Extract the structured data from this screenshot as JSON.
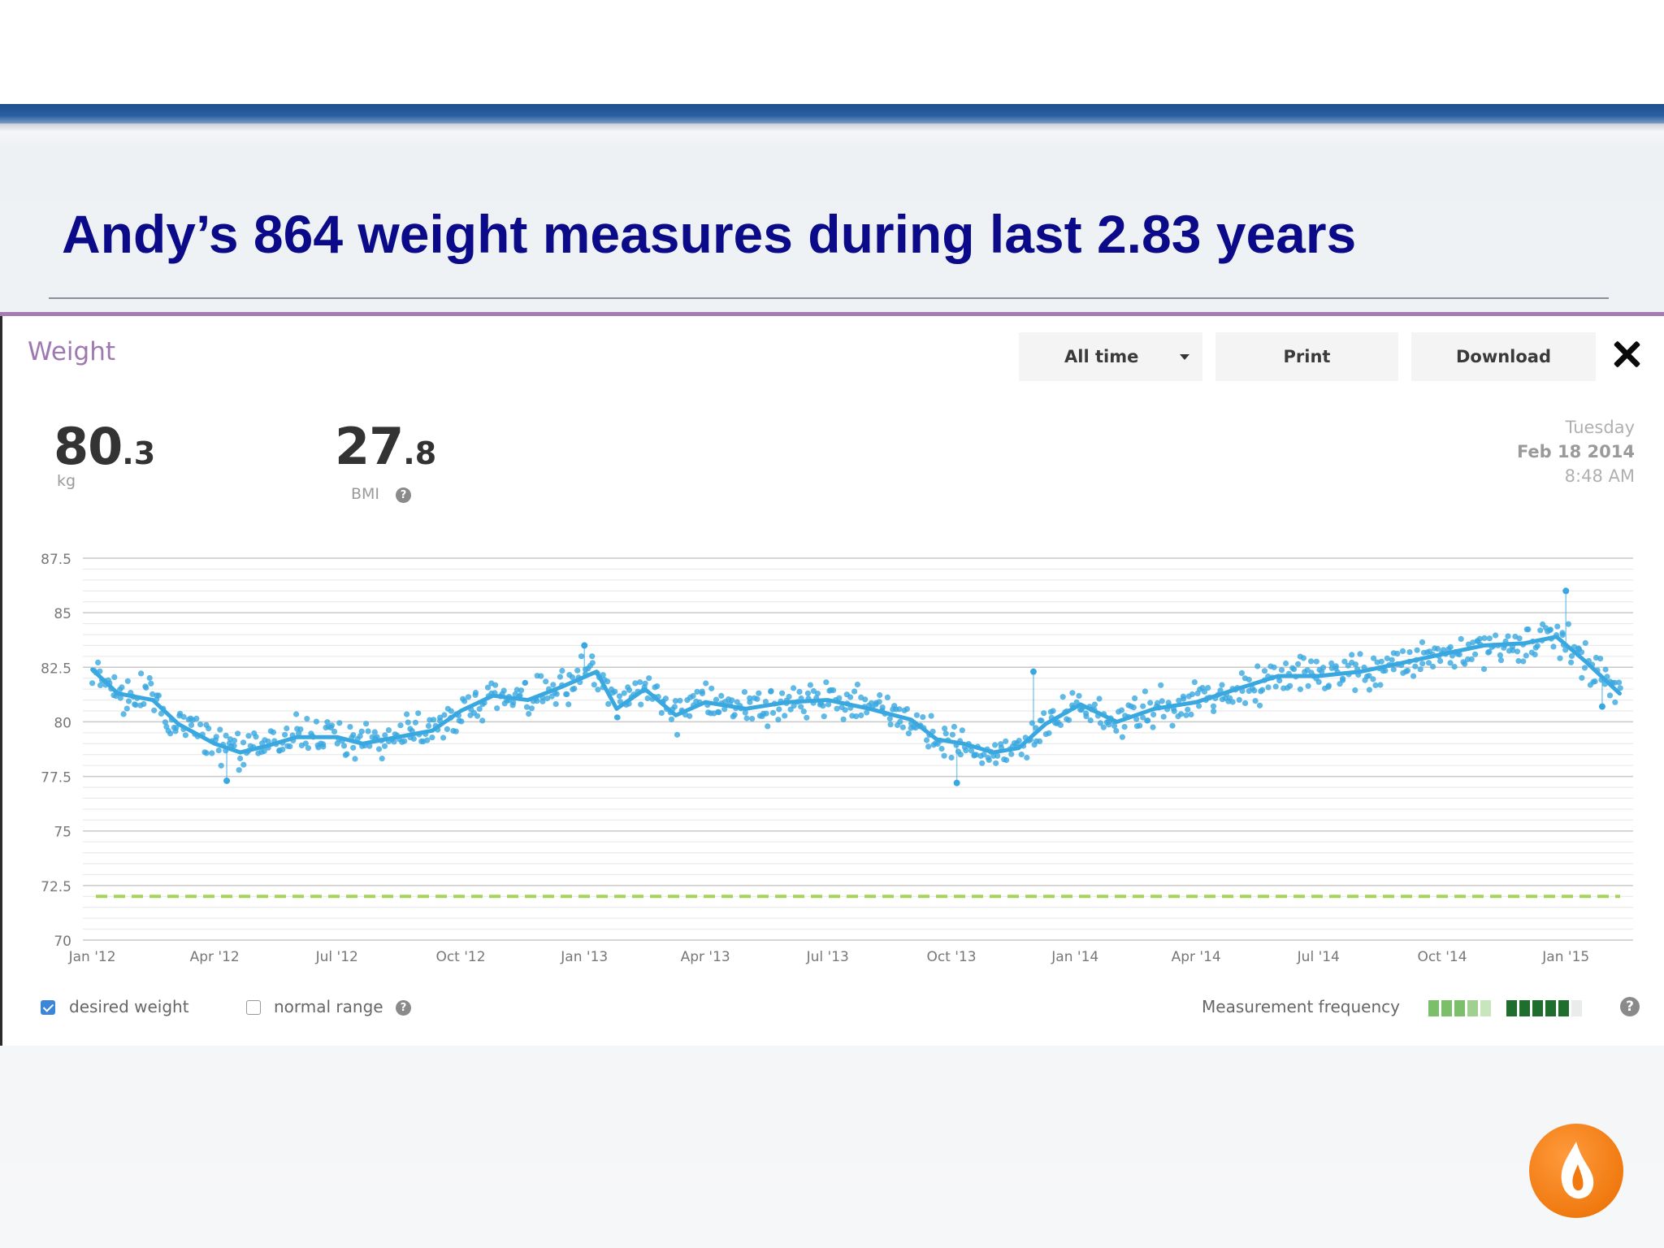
{
  "slide": {
    "title": "Andy’s 864 weight measures during last 2.83 years"
  },
  "panel": {
    "title": "Weight",
    "range_select": {
      "selected": "All time"
    },
    "print_label": "Print",
    "download_label": "Download"
  },
  "stats": {
    "weight": {
      "int": "80",
      "dec": ".3",
      "unit": "kg"
    },
    "bmi": {
      "int": "27",
      "dec": ".8",
      "label": "BMI"
    }
  },
  "selected_date": {
    "weekday": "Tuesday",
    "date": "Feb 18 2014",
    "time": "8:48 AM"
  },
  "legend": {
    "desired_weight": {
      "label": "desired weight",
      "checked": true
    },
    "normal_range": {
      "label": "normal range",
      "checked": false
    },
    "frequency_label": "Measurement frequency",
    "frequency_colors": [
      "#7bbf6a",
      "#7bbf6a",
      "#7bbf6a",
      "#9fd08f",
      "#c9e5bd",
      "#ffffff",
      "#1f6e2e",
      "#1f6e2e",
      "#1f6e2e",
      "#1f6e2e",
      "#1f6e2e",
      "#e9ecea"
    ]
  },
  "icons": {
    "close": "close-icon",
    "help": "help-icon",
    "caret": "caret-down-icon",
    "logo": "flame-logo-icon"
  },
  "colors": {
    "title": "#0b0b8a",
    "series": "#3aa8e0",
    "desired_line": "#a6d35a",
    "accent_band": "#2a5fa3",
    "panel_border": "#a57bb5",
    "logo": "#f07a10"
  },
  "chart_data": {
    "type": "scatter",
    "yticks": [
      70,
      72.5,
      75,
      77.5,
      80,
      82.5,
      85,
      87.5
    ],
    "ylim": [
      70,
      87.5
    ],
    "xlim": [
      "2011-12-25",
      "2015-02-20"
    ],
    "xticks": [
      {
        "label": "Jan '12",
        "date": "2012-01-01"
      },
      {
        "label": "Apr '12",
        "date": "2012-04-01"
      },
      {
        "label": "Jul '12",
        "date": "2012-07-01"
      },
      {
        "label": "Oct '12",
        "date": "2012-10-01"
      },
      {
        "label": "Jan '13",
        "date": "2013-01-01"
      },
      {
        "label": "Apr '13",
        "date": "2013-04-01"
      },
      {
        "label": "Jul '13",
        "date": "2013-07-01"
      },
      {
        "label": "Oct '13",
        "date": "2013-10-01"
      },
      {
        "label": "Jan '14",
        "date": "2014-01-01"
      },
      {
        "label": "Apr '14",
        "date": "2014-04-01"
      },
      {
        "label": "Jul '14",
        "date": "2014-07-01"
      },
      {
        "label": "Oct '14",
        "date": "2014-10-01"
      },
      {
        "label": "Jan '15",
        "date": "2015-01-01"
      }
    ],
    "desired_weight": 72,
    "trend": [
      [
        "2012-01-01",
        82.4
      ],
      [
        "2012-01-20",
        81.3
      ],
      [
        "2012-02-15",
        81.0
      ],
      [
        "2012-03-05",
        79.9
      ],
      [
        "2012-04-01",
        79.0
      ],
      [
        "2012-04-20",
        78.6
      ],
      [
        "2012-05-10",
        78.9
      ],
      [
        "2012-06-01",
        79.3
      ],
      [
        "2012-07-01",
        79.3
      ],
      [
        "2012-07-20",
        79.0
      ],
      [
        "2012-08-15",
        79.3
      ],
      [
        "2012-09-10",
        79.6
      ],
      [
        "2012-10-01",
        80.5
      ],
      [
        "2012-10-25",
        81.2
      ],
      [
        "2012-11-20",
        81.0
      ],
      [
        "2012-12-15",
        81.6
      ],
      [
        "2013-01-10",
        82.3
      ],
      [
        "2013-01-25",
        80.6
      ],
      [
        "2013-02-15",
        81.5
      ],
      [
        "2013-03-10",
        80.3
      ],
      [
        "2013-04-01",
        80.9
      ],
      [
        "2013-05-01",
        80.6
      ],
      [
        "2013-06-01",
        80.9
      ],
      [
        "2013-07-01",
        81.0
      ],
      [
        "2013-08-01",
        80.6
      ],
      [
        "2013-09-01",
        80.1
      ],
      [
        "2013-09-20",
        79.2
      ],
      [
        "2013-10-10",
        79.0
      ],
      [
        "2013-11-01",
        78.6
      ],
      [
        "2013-11-20",
        78.8
      ],
      [
        "2013-12-10",
        79.9
      ],
      [
        "2014-01-05",
        80.8
      ],
      [
        "2014-02-01",
        80.0
      ],
      [
        "2014-03-01",
        80.6
      ],
      [
        "2014-04-01",
        80.9
      ],
      [
        "2014-05-01",
        81.5
      ],
      [
        "2014-06-01",
        82.1
      ],
      [
        "2014-07-01",
        82.1
      ],
      [
        "2014-08-01",
        82.3
      ],
      [
        "2014-09-01",
        82.7
      ],
      [
        "2014-10-01",
        83.1
      ],
      [
        "2014-11-01",
        83.5
      ],
      [
        "2014-12-01",
        83.6
      ],
      [
        "2014-12-25",
        83.9
      ],
      [
        "2015-01-15",
        82.8
      ],
      [
        "2015-02-10",
        81.3
      ]
    ],
    "outliers": [
      [
        "2012-04-10",
        77.3
      ],
      [
        "2013-01-01",
        83.5
      ],
      [
        "2013-10-05",
        77.2
      ],
      [
        "2013-12-01",
        82.3
      ],
      [
        "2015-01-01",
        86.0
      ],
      [
        "2015-01-28",
        80.7
      ]
    ]
  }
}
